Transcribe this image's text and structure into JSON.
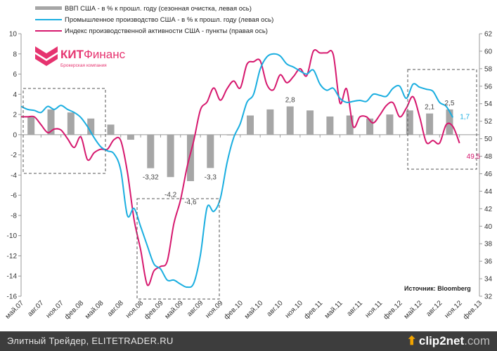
{
  "chart_data": {
    "type": "bar+line",
    "title": "",
    "legend": [
      "ВВП США - в % к прошл. году (сезонная очистка, левая ось)",
      "Промышленное производство США - в % к прошл. году (левая ось)",
      "Индекс производственной активности США - пункты (правая ось)"
    ],
    "legend_placement": "top",
    "y_left": {
      "min": -16,
      "max": 10,
      "step": 2,
      "ticks": [
        "10",
        "8",
        "6",
        "4",
        "2",
        "0",
        "-2",
        "-4",
        "-6",
        "-8",
        "-10",
        "-12",
        "-14",
        "-16"
      ]
    },
    "y_right": {
      "min": 32,
      "max": 62,
      "step": 2,
      "ticks": [
        "62",
        "60",
        "58",
        "56",
        "54",
        "52",
        "50",
        "48",
        "46",
        "44",
        "42",
        "40",
        "38",
        "36",
        "34",
        "32"
      ]
    },
    "x_ticks": [
      "май.07",
      "авг.07",
      "ноя.07",
      "фев.08",
      "май.08",
      "авг.08",
      "ноя.08",
      "фев.09",
      "май.09",
      "авг.09",
      "ноя.09",
      "фев.10",
      "май.10",
      "авг.10",
      "ноя.10",
      "фев.11",
      "май.11",
      "авг.11",
      "ноя.11",
      "фев.12",
      "май.12",
      "авг.12",
      "ноя.12",
      "фев.13"
    ],
    "series": [
      {
        "name": "ВВП США",
        "type": "bar",
        "axis": "left",
        "color": "#a6a6a6",
        "frequency": "quarterly",
        "values": [
          1.8,
          2.5,
          2.2,
          1.6,
          1.0,
          -0.5,
          -3.32,
          -4.2,
          -4.6,
          -3.3,
          -0.05,
          1.9,
          2.5,
          2.8,
          2.4,
          1.8,
          1.9,
          1.6,
          2.0,
          2.4,
          2.1,
          2.5
        ]
      },
      {
        "name": "Промышленное производство США",
        "type": "line",
        "axis": "left",
        "color": "#1aaee0",
        "frequency": "monthly",
        "values": [
          2.8,
          2.5,
          2.4,
          2.2,
          2.8,
          2.5,
          2.9,
          2.5,
          2.2,
          1.7,
          0.8,
          -0.3,
          -1.2,
          -1.6,
          -1.9,
          -3.5,
          -8.0,
          -7.3,
          -9.1,
          -11.0,
          -12.8,
          -13.3,
          -14.4,
          -14.4,
          -14.8,
          -15.1,
          -14.7,
          -11.9,
          -7.2,
          -7.6,
          -6.3,
          -2.8,
          -0.3,
          1.1,
          3.2,
          4.0,
          6.5,
          7.7,
          8.0,
          7.8,
          7.0,
          6.7,
          6.3,
          6.0,
          6.4,
          5.0,
          4.4,
          4.6,
          3.6,
          3.2,
          3.3,
          3.4,
          3.3,
          4.0,
          3.9,
          3.8,
          4.6,
          4.8,
          3.6,
          5.0,
          4.7,
          4.5,
          4.3,
          3.2,
          2.8,
          1.7
        ]
      },
      {
        "name": "Индекс производственной активности США",
        "type": "line",
        "axis": "right",
        "color": "#d6186e",
        "frequency": "monthly",
        "values": [
          52.5,
          52.5,
          52.5,
          51.6,
          50.7,
          51.1,
          51.0,
          50.0,
          49.0,
          50.2,
          47.6,
          48.4,
          48.8,
          48.8,
          49.9,
          49.8,
          46.2,
          40.8,
          37.3,
          33.3,
          34.9,
          35.4,
          36.0,
          40.3,
          43.0,
          46.8,
          49.8,
          53.3,
          54.2,
          55.8,
          54.4,
          55.7,
          56.6,
          55.8,
          58.5,
          58.8,
          58.9,
          56.2,
          55.6,
          57.3,
          56.4,
          57.1,
          58.0,
          57.2,
          60.0,
          59.8,
          59.8,
          59.6,
          54.1,
          55.7,
          51.4,
          52.5,
          52.5,
          51.8,
          52.7,
          53.8,
          54.1,
          52.5,
          53.5,
          54.8,
          52.5,
          49.6,
          49.8,
          49.5,
          51.6,
          51.4,
          49.5
        ]
      }
    ],
    "annotations": [
      {
        "text": "-3,32",
        "series": 0,
        "index": 6
      },
      {
        "text": "-4,2",
        "series": 0,
        "index": 7
      },
      {
        "text": "-4,6",
        "series": 0,
        "index": 8
      },
      {
        "text": "-3,3",
        "series": 0,
        "index": 9
      },
      {
        "text": "2,8",
        "series": 0,
        "index": 13
      },
      {
        "text": "2,1",
        "series": 0,
        "index": 20
      },
      {
        "text": "2,5",
        "series": 0,
        "index": 21
      },
      {
        "text": "1,7",
        "series": 1,
        "index": 65
      },
      {
        "text": "49,5",
        "series": 2,
        "index": 66
      }
    ],
    "source": "Источник: Bloomberg"
  },
  "logo": {
    "name": "КИТФинанс",
    "bold_part": "КИТ",
    "rest": "Финанс",
    "subtitle": "Брокерская компания"
  },
  "footer": {
    "left": "Элитный Трейдер, ELITETRADER.RU",
    "brand": "clip2net",
    "brand_suffix": ".com"
  }
}
